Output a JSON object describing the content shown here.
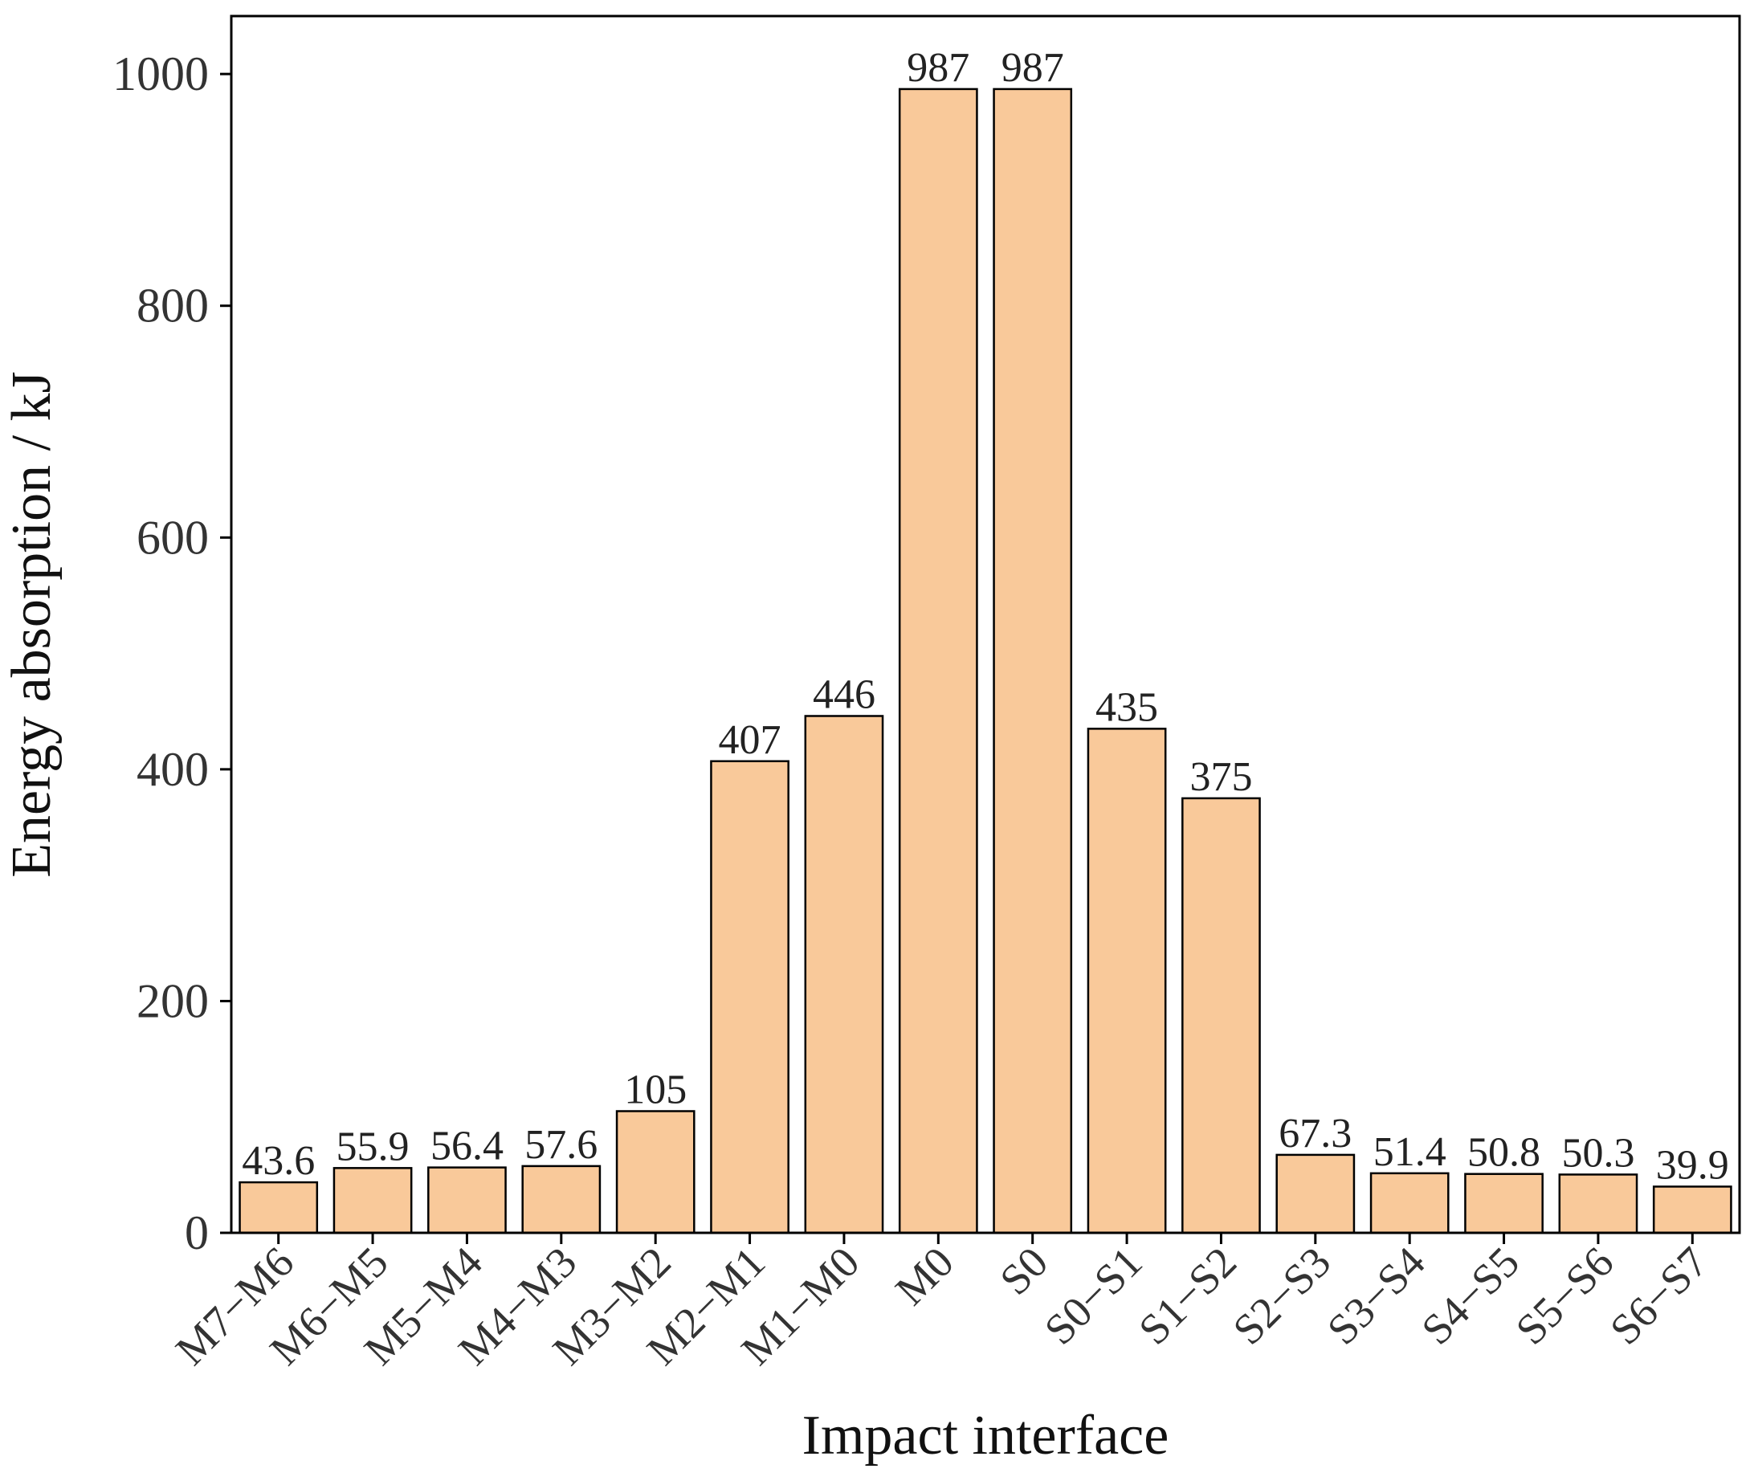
{
  "chart_data": {
    "type": "bar",
    "title": "",
    "xlabel": "Impact interface",
    "ylabel": "Energy absorption / kJ",
    "ylim": [
      0,
      1050
    ],
    "yticks": [
      0,
      200,
      400,
      600,
      800,
      1000
    ],
    "grid": false,
    "categories": [
      "M7−M6",
      "M6−M5",
      "M5−M4",
      "M4−M3",
      "M3−M2",
      "M2−M1",
      "M1−M0",
      "M0",
      "S0",
      "S0−S1",
      "S1−S2",
      "S2−S3",
      "S3−S4",
      "S4−S5",
      "S5−S6",
      "S6−S7"
    ],
    "values": [
      43.6,
      55.9,
      56.4,
      57.6,
      105,
      407,
      446,
      987,
      987,
      435,
      375,
      67.3,
      51.4,
      50.8,
      50.3,
      39.9
    ],
    "data_labels": [
      "43.6",
      "55.9",
      "56.4",
      "57.6",
      "105",
      "407",
      "446",
      "987",
      "987",
      "435",
      "375",
      "67.3",
      "51.4",
      "50.8",
      "50.3",
      "39.9"
    ],
    "bar_color": "#F9C99A",
    "bar_edge_color": "#000000"
  }
}
